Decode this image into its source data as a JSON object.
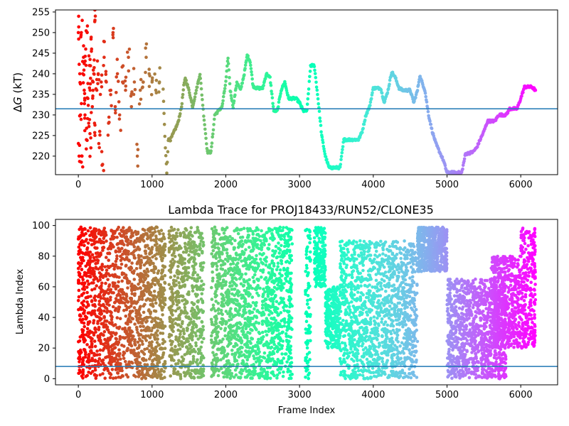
{
  "chart_data": [
    {
      "type": "scatter",
      "title": "",
      "xlabel": "",
      "ylabel": "ΔG (kT)",
      "ylabel_parts": {
        "delta": "Δ",
        "var": "G",
        "unit": " (kT)"
      },
      "xlim": [
        -310,
        6500
      ],
      "ylim": [
        215.5,
        255.5
      ],
      "xticks": [
        0,
        1000,
        2000,
        3000,
        4000,
        5000,
        6000
      ],
      "yticks": [
        220,
        225,
        230,
        235,
        240,
        245,
        250,
        255
      ],
      "hline": {
        "y": 231.5,
        "color": "#1f77b4"
      },
      "colormap": "rainbow",
      "colormap_direction": "red at early frames, violet at late frames",
      "series": [
        {
          "kind": "early-scatter",
          "points": [
            [
              0,
              250
            ],
            [
              10,
              220
            ],
            [
              20,
              240
            ],
            [
              30,
              230
            ],
            [
              40,
              250
            ],
            [
              50,
              220
            ],
            [
              60,
              240
            ],
            [
              70,
              244
            ],
            [
              80,
              236
            ],
            [
              90,
              230
            ],
            [
              100,
              246
            ],
            [
              110,
              224
            ],
            [
              120,
              250
            ],
            [
              130,
              234
            ],
            [
              140,
              228
            ],
            [
              150,
              242
            ],
            [
              160,
              236
            ],
            [
              170,
              222
            ],
            [
              180,
              246
            ],
            [
              190,
              232
            ],
            [
              200,
              238
            ],
            [
              210,
              240
            ],
            [
              220,
              228
            ],
            [
              230,
              254
            ],
            [
              250,
              236
            ],
            [
              270,
              240
            ],
            [
              290,
              226
            ],
            [
              310,
              238
            ],
            [
              330,
              218
            ],
            [
              350,
              244
            ],
            [
              380,
              238
            ],
            [
              410,
              228
            ],
            [
              440,
              236
            ],
            [
              470,
              250
            ],
            [
              500,
              232
            ],
            [
              530,
              240
            ],
            [
              560,
              230
            ],
            [
              600,
              238
            ],
            [
              640,
              236
            ],
            [
              680,
              244
            ],
            [
              720,
              232
            ],
            [
              760,
              238
            ],
            [
              800,
              220
            ],
            [
              840,
              236
            ],
            [
              880,
              238
            ],
            [
              920,
              244
            ],
            [
              960,
              240
            ],
            [
              1000,
              238
            ],
            [
              1050,
              236
            ],
            [
              1100,
              238
            ]
          ]
        },
        {
          "kind": "trajectory",
          "points": [
            [
              1150,
              236
            ],
            [
              1180,
              222
            ],
            [
              1200,
              216
            ],
            [
              1220,
              224
            ],
            [
              1250,
              224
            ],
            [
              1300,
              226
            ],
            [
              1350,
              228
            ],
            [
              1400,
              232
            ],
            [
              1430,
              237
            ],
            [
              1450,
              239
            ],
            [
              1500,
              236
            ],
            [
              1550,
              232
            ],
            [
              1600,
              236
            ],
            [
              1650,
              240
            ],
            [
              1700,
              230
            ],
            [
              1750,
              221
            ],
            [
              1800,
              221
            ],
            [
              1850,
              230
            ],
            [
              1900,
              231
            ],
            [
              1950,
              232
            ],
            [
              2000,
              238
            ],
            [
              2030,
              244
            ],
            [
              2060,
              236
            ],
            [
              2100,
              232
            ],
            [
              2150,
              238
            ],
            [
              2200,
              236
            ],
            [
              2250,
              240
            ],
            [
              2290,
              244.5
            ],
            [
              2330,
              243
            ],
            [
              2370,
              237
            ],
            [
              2420,
              236.5
            ],
            [
              2500,
              236.5
            ],
            [
              2550,
              240
            ],
            [
              2600,
              239
            ],
            [
              2650,
              231
            ],
            [
              2700,
              231
            ],
            [
              2750,
              236
            ],
            [
              2800,
              238
            ],
            [
              2850,
              234
            ],
            [
              2900,
              234
            ],
            [
              2950,
              234
            ],
            [
              3000,
              233
            ],
            [
              3050,
              231
            ],
            [
              3100,
              231
            ],
            [
              3150,
              242
            ],
            [
              3200,
              242
            ],
            [
              3250,
              234
            ],
            [
              3300,
              225
            ],
            [
              3350,
              220
            ],
            [
              3400,
              217.2
            ],
            [
              3450,
              217.2
            ],
            [
              3550,
              217.2
            ],
            [
              3600,
              224
            ],
            [
              3700,
              224
            ],
            [
              3800,
              224
            ],
            [
              3850,
              226
            ],
            [
              3900,
              230
            ],
            [
              3950,
              232
            ],
            [
              4000,
              236.5
            ],
            [
              4100,
              236.5
            ],
            [
              4150,
              233
            ],
            [
              4200,
              236
            ],
            [
              4250,
              240.5
            ],
            [
              4300,
              239
            ],
            [
              4350,
              236.5
            ],
            [
              4400,
              236
            ],
            [
              4450,
              236
            ],
            [
              4500,
              236
            ],
            [
              4550,
              233
            ],
            [
              4600,
              236
            ],
            [
              4630,
              239.5
            ],
            [
              4700,
              236
            ],
            [
              4750,
              230
            ],
            [
              4800,
              226
            ],
            [
              4850,
              223
            ],
            [
              4900,
              221
            ],
            [
              4950,
              219
            ],
            [
              5000,
              216
            ],
            [
              5100,
              216
            ],
            [
              5200,
              216
            ],
            [
              5250,
              220.5
            ],
            [
              5350,
              221
            ],
            [
              5400,
              222
            ],
            [
              5450,
              224
            ],
            [
              5500,
              226
            ],
            [
              5550,
              228.5
            ],
            [
              5650,
              228.5
            ],
            [
              5700,
              230
            ],
            [
              5800,
              230
            ],
            [
              5850,
              231.5
            ],
            [
              5950,
              231.5
            ],
            [
              6000,
              234
            ],
            [
              6050,
              236.8
            ],
            [
              6150,
              236.8
            ],
            [
              6200,
              236
            ]
          ]
        }
      ]
    },
    {
      "type": "scatter",
      "title": "Lambda Trace for PROJ18433/RUN52/CLONE35",
      "xlabel": "Frame Index",
      "ylabel": "Lambda Index",
      "xlim": [
        -310,
        6500
      ],
      "ylim": [
        -4,
        104
      ],
      "xticks": [
        0,
        1000,
        2000,
        3000,
        4000,
        5000,
        6000
      ],
      "yticks": [
        0,
        20,
        40,
        60,
        80,
        100
      ],
      "hline": {
        "y": 8,
        "color": "#1f77b4"
      },
      "colormap": "rainbow",
      "colormap_direction": "red at early frames, violet at late frames",
      "series": [
        {
          "kind": "clusters",
          "bands": [
            {
              "x": [
                0,
                180
              ],
              "y": [
                0,
                99
              ]
            },
            {
              "x": [
                180,
                1180
              ],
              "y": [
                0,
                99
              ]
            },
            {
              "x": [
                1230,
                1700
              ],
              "y": [
                0,
                99
              ]
            },
            {
              "x": [
                1800,
                2900
              ],
              "y": [
                0,
                99
              ]
            },
            {
              "x": [
                3080,
                3150
              ],
              "y": [
                0,
                99
              ]
            },
            {
              "x": [
                3200,
                3350
              ],
              "y": [
                60,
                99
              ]
            },
            {
              "x": [
                3350,
                3550
              ],
              "y": [
                20,
                60
              ]
            },
            {
              "x": [
                3550,
                4600
              ],
              "y": [
                0,
                90
              ]
            },
            {
              "x": [
                4600,
                5000
              ],
              "y": [
                70,
                99
              ]
            },
            {
              "x": [
                5000,
                5800
              ],
              "y": [
                0,
                65
              ]
            },
            {
              "x": [
                5600,
                6000
              ],
              "y": [
                20,
                80
              ]
            },
            {
              "x": [
                6000,
                6200
              ],
              "y": [
                20,
                99
              ]
            }
          ]
        }
      ]
    }
  ]
}
